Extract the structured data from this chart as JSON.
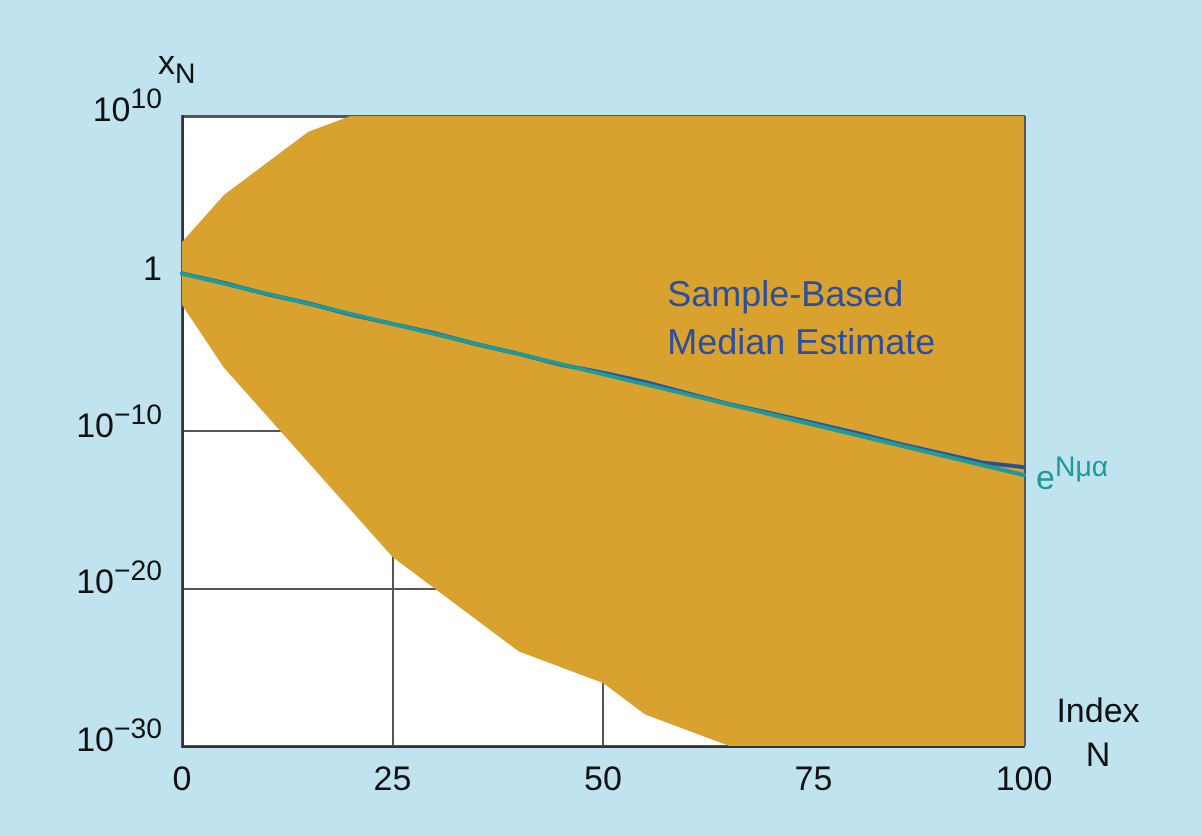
{
  "chart_data": {
    "type": "line",
    "xlabel": "Index N",
    "ylabel": "x$_{N}$",
    "x": [
      0,
      5,
      10,
      15,
      20,
      25,
      30,
      35,
      40,
      45,
      50,
      55,
      60,
      65,
      70,
      75,
      80,
      85,
      90,
      95,
      100
    ],
    "xlim": [
      0,
      100
    ],
    "xticks": [
      0,
      25,
      50,
      75,
      100
    ],
    "ylim": [
      1e-30,
      10000000000.0
    ],
    "yticks": [
      {
        "value": 1e-30,
        "label": "10$^{−30}$"
      },
      {
        "value": 1e-20,
        "label": "10$^{−20}$"
      },
      {
        "value": 1e-10,
        "label": "10$^{−10}$"
      },
      1,
      {
        "value": 10000000000.0,
        "label": "10$^{10}$"
      }
    ],
    "log": "y",
    "grid": true,
    "legend": false,
    "marker": "none",
    "line_style": "solid",
    "series": [
      {
        "type": "area",
        "color": "#d9a12e",
        "values": [
          null,
          null,
          null,
          null,
          null,
          null,
          null,
          null,
          null,
          null,
          null,
          null,
          null,
          null,
          null,
          null,
          null,
          null,
          null,
          null,
          null
        ],
        "lower": [
          0.01,
          1e-06,
          1e-09,
          1e-12,
          1e-15,
          1e-18,
          1e-20,
          1e-22,
          1e-24,
          1e-25,
          1e-26,
          1e-28,
          1e-29,
          1e-30,
          1e-30,
          1e-30,
          1e-30,
          1e-30,
          1e-30,
          1e-30,
          1e-30
        ],
        "upper": [
          100.0,
          100000.0,
          10000000.0,
          1000000000.0,
          10000000000.0,
          10000000000.0,
          10000000000.0,
          10000000000.0,
          10000000000.0,
          10000000000.0,
          10000000000.0,
          10000000000.0,
          10000000000.0,
          10000000000.0,
          10000000000.0,
          10000000000.0,
          10000000000.0,
          10000000000.0,
          10000000000.0,
          10000000000.0,
          10000000000.0
        ]
      },
      {
        "name": "Sample-Based Median Estimate",
        "color": "#2b4f9e",
        "values": [
          1,
          0.25,
          0.05,
          0.013,
          0.0025,
          0.00063,
          0.00016,
          3.2e-05,
          7.9e-06,
          1.6e-06,
          5e-07,
          1.3e-07,
          2.5e-08,
          5e-09,
          1.3e-09,
          3.2e-10,
          7.9e-11,
          1.6e-11,
          4e-12,
          1e-12,
          5e-13
        ]
      },
      {
        "name": "e$^{Nμα}$",
        "color": "#1f9a96",
        "x": [
          0,
          100
        ],
        "values": [
          1,
          1.6e-13
        ]
      }
    ]
  }
}
